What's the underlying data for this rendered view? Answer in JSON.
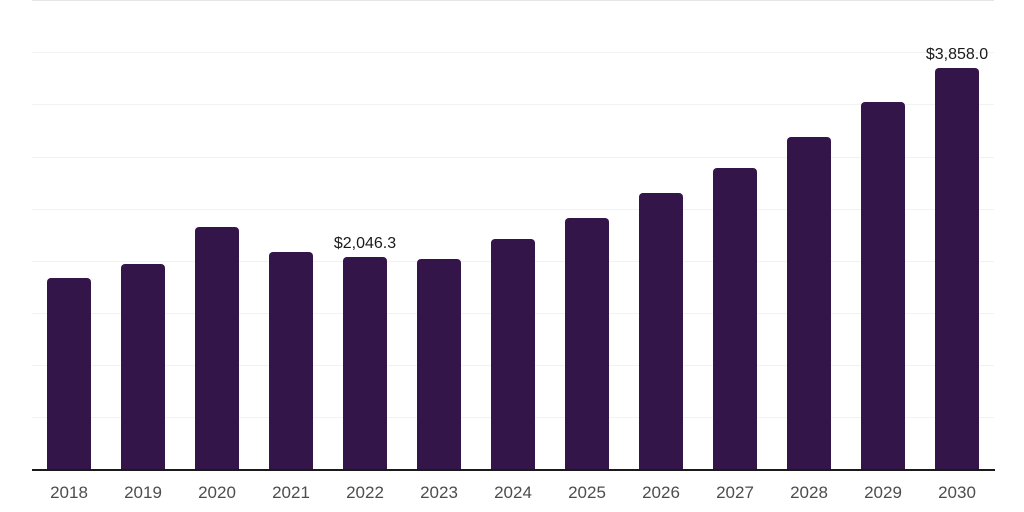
{
  "chart_data": {
    "type": "bar",
    "title": "",
    "xlabel": "",
    "ylabel": "",
    "categories": [
      "2018",
      "2019",
      "2020",
      "2021",
      "2022",
      "2023",
      "2024",
      "2025",
      "2026",
      "2027",
      "2028",
      "2029",
      "2030"
    ],
    "values": [
      1845,
      1980,
      2335,
      2095,
      2046.3,
      2030,
      2220,
      2420,
      2660,
      2900,
      3200,
      3535,
      3858
    ],
    "point_labels": [
      "",
      "",
      "",
      "",
      "$2,046.3",
      "",
      "",
      "",
      "",
      "",
      "",
      "",
      "$3,858.0"
    ],
    "ylim": [
      0,
      4500
    ],
    "ytick_step": 500,
    "yaxis_tick_labels_visible": false,
    "grid": true,
    "legend": false,
    "colors": {
      "bar": "#33154a",
      "grid": "#f2f2f2",
      "grid_top": "#e6e6e6",
      "axis_line": "#1a1a1a",
      "data_label": "#1a1a1a",
      "tick_label": "#4d4d4d",
      "background": "#ffffff"
    }
  }
}
